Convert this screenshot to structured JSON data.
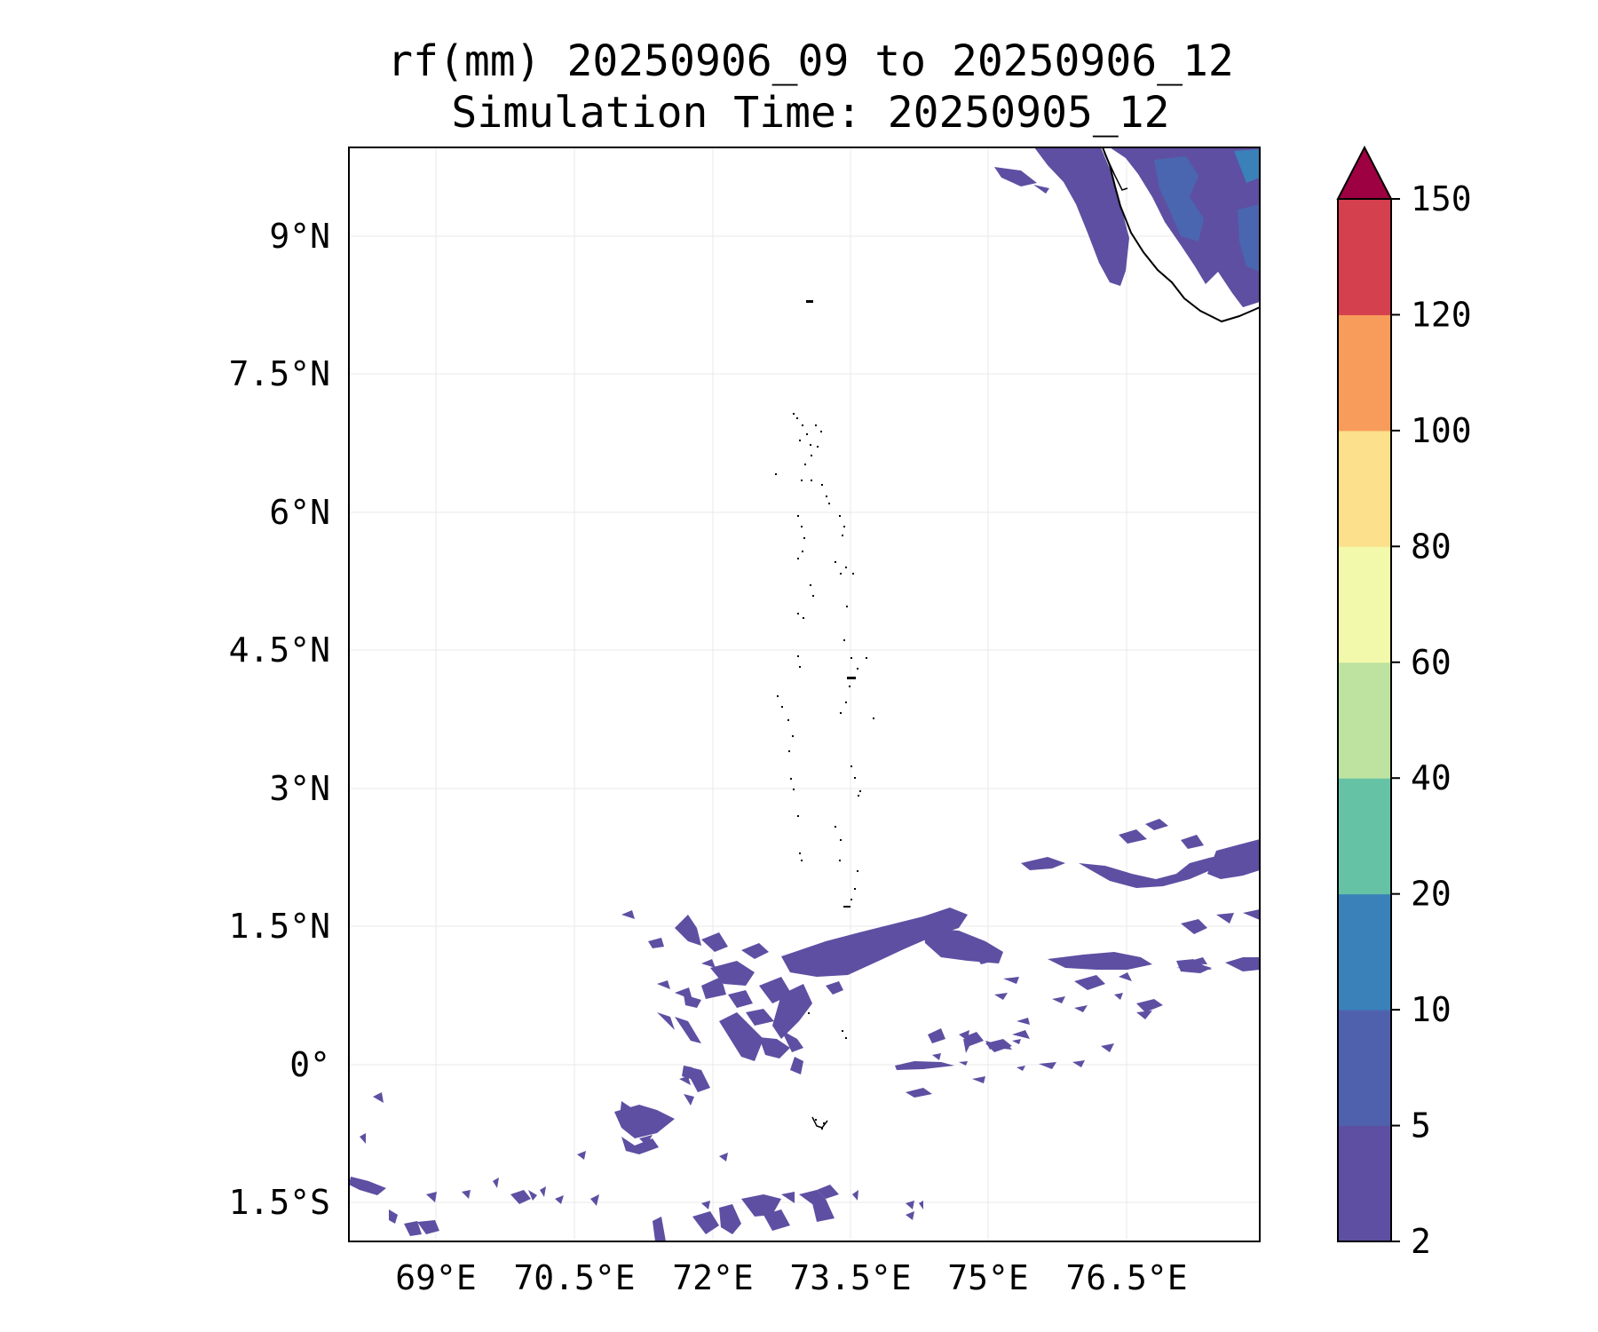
{
  "title": {
    "line1": "rf(mm) 20250906_09 to 20250906_12",
    "line2": "Simulation Time: 20250905_12"
  },
  "map": {
    "lon_ticks": [
      "69°E",
      "70.5°E",
      "72°E",
      "73.5°E",
      "75°E",
      "76.5°E"
    ],
    "lat_ticks": [
      "9°N",
      "7.5°N",
      "6°N",
      "4.5°N",
      "3°N",
      "1.5°N",
      "0°",
      "1.5°S"
    ],
    "grid": true,
    "projection_extent_note": ""
  },
  "colorbar": {
    "levels": [
      "2",
      "5",
      "10",
      "20",
      "40",
      "60",
      "80",
      "100",
      "120",
      "150"
    ],
    "colors": [
      "#5e4fa2",
      "#4f61ad",
      "#3a80b9",
      "#66c2a5",
      "#bee3a0",
      "#f3f9ab",
      "#fde08b",
      "#f89c5b",
      "#d5404e"
    ],
    "extend_color": "#9e0142",
    "extend": "max"
  },
  "colors": {
    "rain_light": "#5e4fa2",
    "rain_medium": "#4a66b0",
    "coastline": "#000000"
  }
}
